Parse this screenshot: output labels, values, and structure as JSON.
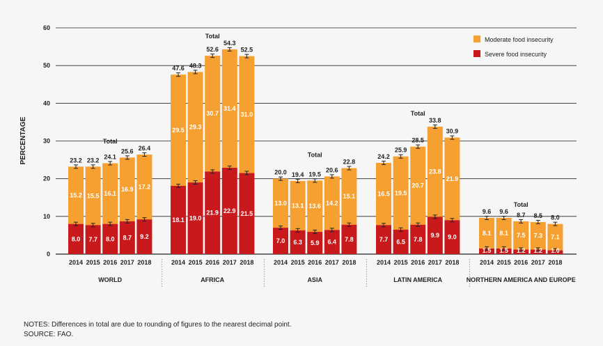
{
  "chart_data": {
    "type": "bar",
    "stacked": true,
    "ylabel": "PERCENTAGE",
    "ylim": [
      0,
      60
    ],
    "yticks": [
      0,
      10,
      20,
      30,
      40,
      50,
      60
    ],
    "legend": {
      "placement": "top-right"
    },
    "total_label": "Total",
    "series": [
      {
        "name": "Moderate food insecurity",
        "color": "#f5a031"
      },
      {
        "name": "Severe food insecurity",
        "color": "#c8191d"
      }
    ],
    "groups": [
      {
        "name": "WORLD",
        "years": [
          "2014",
          "2015",
          "2016",
          "2017",
          "2018"
        ],
        "severe": [
          "8.0",
          "7.7",
          "8.0",
          "8.7",
          "9.2"
        ],
        "moderate": [
          "15.2",
          "15.5",
          "16.1",
          "16.9",
          "17.2"
        ],
        "total": [
          "23.2",
          "23.2",
          "24.1",
          "25.6",
          "26.4"
        ]
      },
      {
        "name": "AFRICA",
        "years": [
          "2014",
          "2015",
          "2016",
          "2017",
          "2018"
        ],
        "severe": [
          "18.1",
          "19.0",
          "21.9",
          "22.9",
          "21.5"
        ],
        "moderate": [
          "29.5",
          "29.3",
          "30.7",
          "31.4",
          "31.0"
        ],
        "total": [
          "47.6",
          "48.3",
          "52.6",
          "54.3",
          "52.5"
        ]
      },
      {
        "name": "ASIA",
        "years": [
          "2014",
          "2015",
          "2016",
          "2017",
          "2018"
        ],
        "severe": [
          "7.0",
          "6.3",
          "5.9",
          "6.4",
          "7.8"
        ],
        "moderate": [
          "13.0",
          "13.1",
          "13.6",
          "14.2",
          "15.1"
        ],
        "total": [
          "20.0",
          "19.4",
          "19.5",
          "20.6",
          "22.8"
        ]
      },
      {
        "name": "LATIN AMERICA",
        "years": [
          "2014",
          "2015",
          "2016",
          "2017",
          "2018"
        ],
        "severe": [
          "7.7",
          "6.5",
          "7.8",
          "9.9",
          "9.0"
        ],
        "moderate": [
          "16.5",
          "19.5",
          "20.7",
          "23.8",
          "21.9"
        ],
        "total": [
          "24.2",
          "25.9",
          "28.5",
          "33.8",
          "30.9"
        ]
      },
      {
        "name": "NORTHERN AMERICA AND EUROPE",
        "years": [
          "2014",
          "2015",
          "2016",
          "2017",
          "2018"
        ],
        "severe": [
          "1.5",
          "1.5",
          "1.2",
          "1.2",
          "1.0"
        ],
        "moderate": [
          "8.1",
          "8.1",
          "7.5",
          "7.3",
          "7.1"
        ],
        "total": [
          "9.6",
          "9.6",
          "8.7",
          "8.5",
          "8.0"
        ]
      }
    ]
  },
  "notes": {
    "line1": "NOTES: Differences in total are due to rounding of figures to the nearest decimal point.",
    "line2": "SOURCE: FAO."
  }
}
